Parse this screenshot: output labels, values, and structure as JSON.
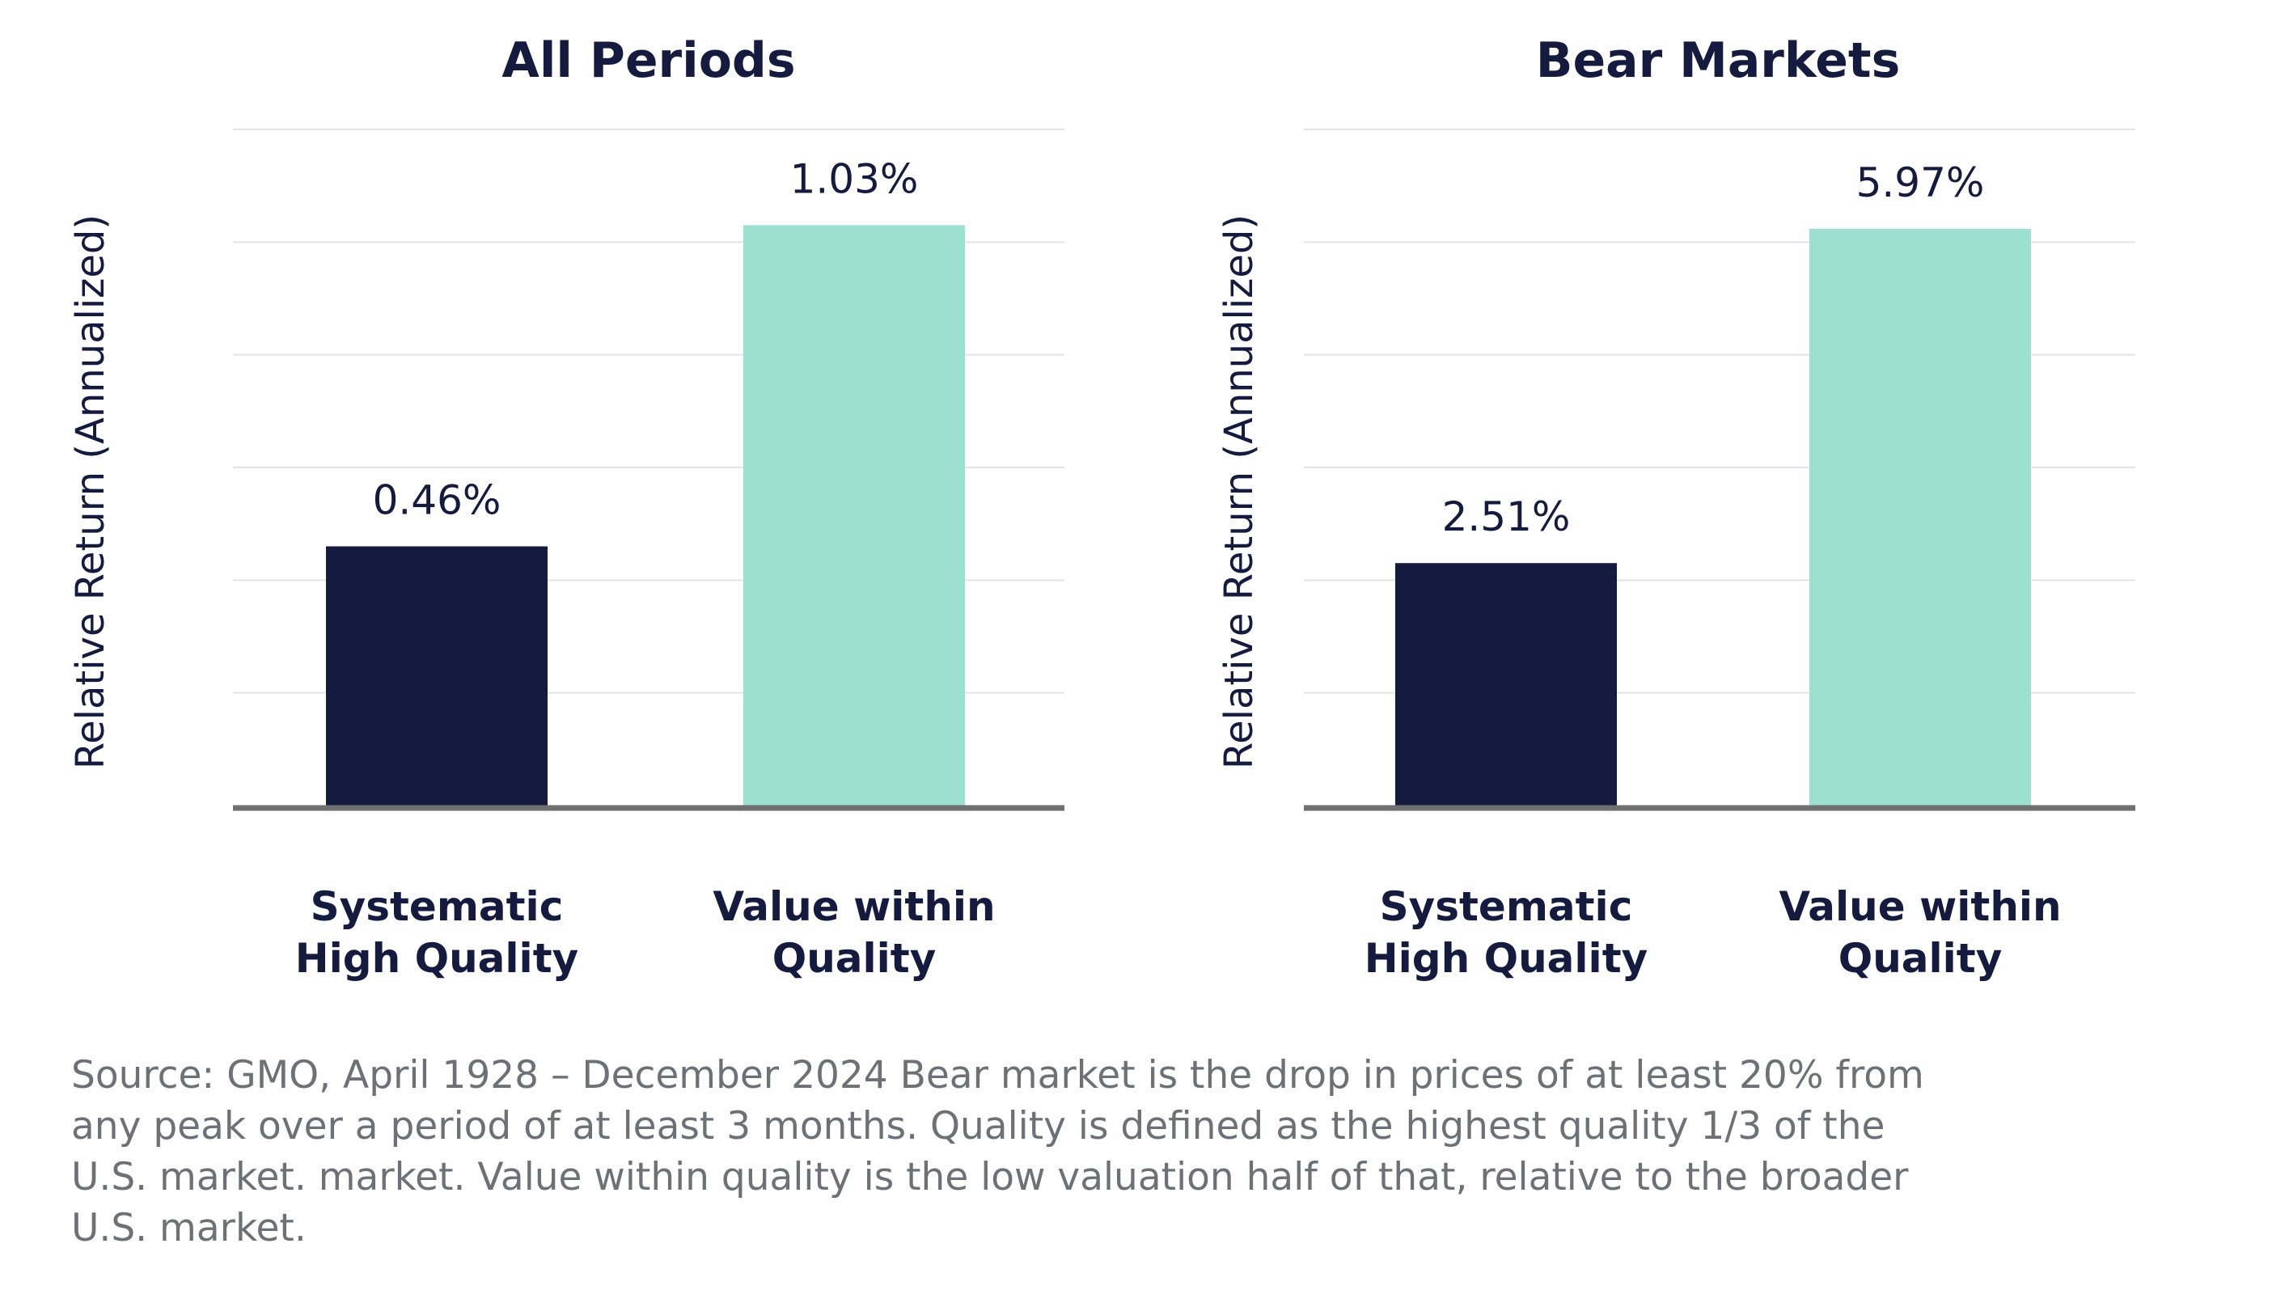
{
  "chart_data": [
    {
      "type": "bar",
      "title": "All Periods",
      "ylabel": "Relative Return (Annualized)",
      "categories": [
        "Systematic\nHigh Quality",
        "Value within\nQuality"
      ],
      "values": [
        0.46,
        1.03
      ],
      "value_labels": [
        "0.46%",
        "1.03%"
      ],
      "colors": [
        "#151a3f",
        "#9ce0d2"
      ],
      "ylim": [
        0,
        1.2
      ],
      "grid": true
    },
    {
      "type": "bar",
      "title": "Bear Markets",
      "ylabel": "Relative Return (Annualized)",
      "categories": [
        "Systematic\nHigh Quality",
        "Value within\nQuality"
      ],
      "values": [
        2.51,
        5.97
      ],
      "value_labels": [
        "2.51%",
        "5.97%"
      ],
      "colors": [
        "#151a3f",
        "#9ce0d2"
      ],
      "ylim": [
        0,
        7.0
      ],
      "grid": true
    }
  ],
  "source_note": "Source: GMO, April 1928 – December 2024 Bear market is the drop in prices of at least 20% from\nany peak over a period of at least 3 months. Quality is defined as the highest quality 1/3 of the\nU.S. market. market. Value within quality is the low valuation half of that, relative to the broader\nU.S. market.",
  "colors": {
    "text": "#151a3f",
    "note": "#6f7077",
    "gridline": "#e3e3e3",
    "baseline": "#707070"
  }
}
